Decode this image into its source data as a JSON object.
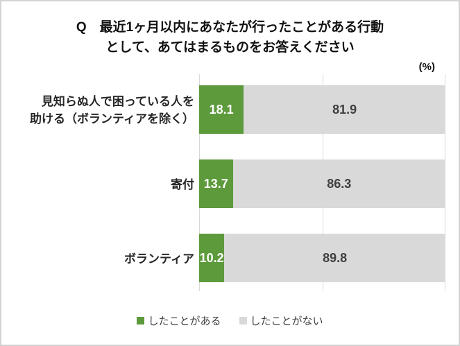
{
  "chart_data": {
    "type": "bar",
    "orientation": "horizontal",
    "stacked": true,
    "title_line1": "Q　最近1ヶ月以内にあなたが行ったことがある行動",
    "title_line2": "として、あてはまるものをお答えください",
    "unit_label": "(%)",
    "categories": [
      "見知らぬ人で困っている人を\n助ける（ボランティアを除く）",
      "寄付",
      "ボランティア"
    ],
    "series": [
      {
        "name": "したことがある",
        "color": "#5d9a3c",
        "values": [
          18.1,
          13.7,
          10.2
        ]
      },
      {
        "name": "したことがない",
        "color": "#d9d9d9",
        "values": [
          81.9,
          86.3,
          89.8
        ]
      }
    ],
    "xlim": [
      0,
      100
    ],
    "gridlines_pct": [
      0,
      50,
      100
    ],
    "grid": true,
    "legend_position": "bottom"
  },
  "colors": {
    "series1_green": "#5d9a3c",
    "series2_gray": "#d9d9d9",
    "value_text_on_green": "#ffffff",
    "value_text_on_gray": "#3f3f3f",
    "gridline": "#d9d9d9",
    "figure_border": "#d3d3d3",
    "title_text": "#111111",
    "category_text": "#262626",
    "legend_text": "#404040"
  }
}
